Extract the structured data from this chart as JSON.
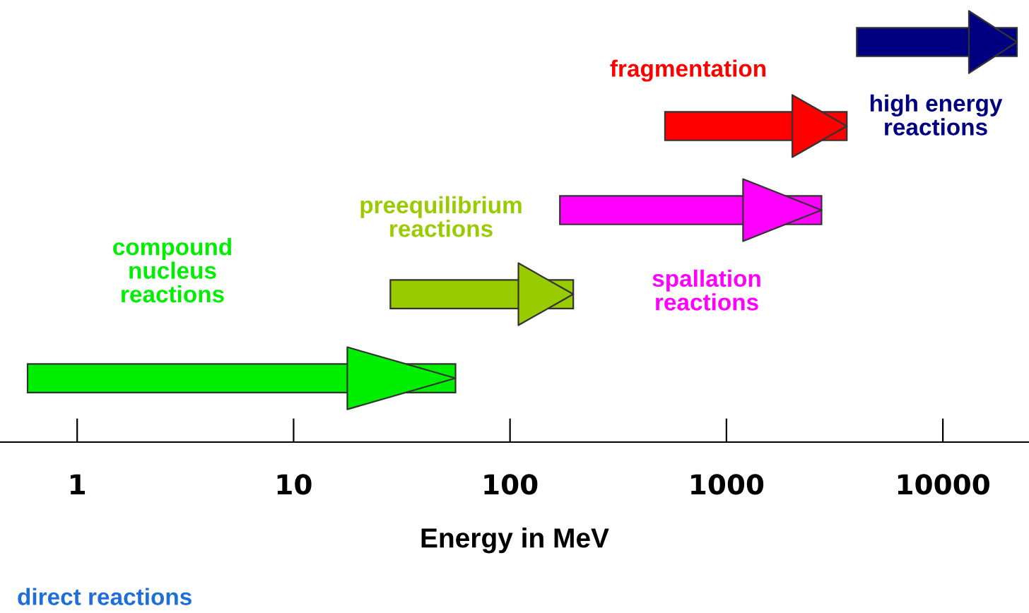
{
  "chart_data": {
    "type": "bar",
    "orientation": "horizontal",
    "log": "x",
    "categories": [
      null,
      null,
      null,
      null,
      null
    ],
    "base": [
      4000,
      520,
      170,
      28,
      0.59
    ],
    "values": [
      18000,
      3080,
      2580,
      168,
      55.41
    ],
    "colors": [
      "#000080",
      "#ff0000",
      "#ff00ff",
      "#99cc00",
      "#00ee00"
    ],
    "xlim": [
      0.44,
      25000
    ],
    "xticks": [
      1,
      10,
      100,
      1000,
      10000
    ],
    "xlabel": "Energy in MeV",
    "tick_labels": "x",
    "grid": false,
    "legend": false,
    "annotations": [
      "high energy\nreactions",
      "fragmentation",
      "spallation\nreactions",
      "preequilibrium\nreactions",
      "compound\nnucleus\nreactions",
      "direct reactions"
    ]
  }
}
